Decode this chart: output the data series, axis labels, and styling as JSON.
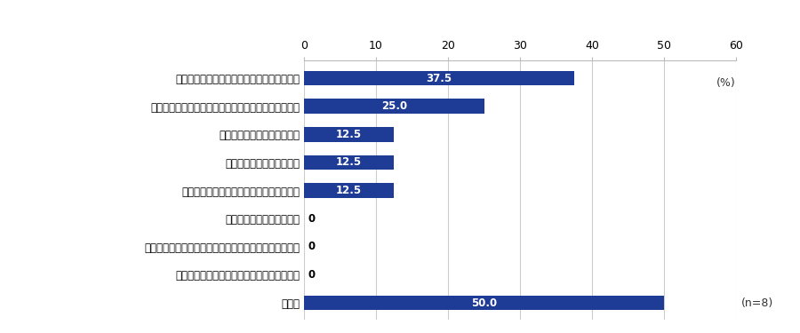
{
  "categories": [
    "競合他社の撤退によるビジネスチャンス拡大",
    "対ロ制裁やロシアによる制裁への対抗策の影響範囲外",
    "ロシア市場における需要拡大",
    "物流ルートの再構築・再開",
    "商品、原材料、部品、サービスの調達再開",
    "ロシア政府による規制緩和",
    "本社・在欧統括会社などの対ロシアビジネス続行の意向",
    "ウクライナへの軍事侵攻以外に起因する要因",
    "その他"
  ],
  "values": [
    37.5,
    25.0,
    12.5,
    12.5,
    12.5,
    0,
    0,
    0,
    50.0
  ],
  "bar_color": "#1e3c96",
  "label_color_inside": "#ffffff",
  "label_color_outside": "#000000",
  "xlim": [
    0,
    60
  ],
  "xticks": [
    0,
    10,
    20,
    30,
    40,
    50,
    60
  ],
  "xlabel_unit": "(%)",
  "n_label": "(n=8)",
  "figsize": [
    9.0,
    3.75
  ],
  "dpi": 100,
  "bar_height": 0.52,
  "fontsize_labels": 8.5,
  "fontsize_values": 8.5,
  "fontsize_ticks": 9,
  "fontsize_unit": 9,
  "fontsize_n": 9
}
